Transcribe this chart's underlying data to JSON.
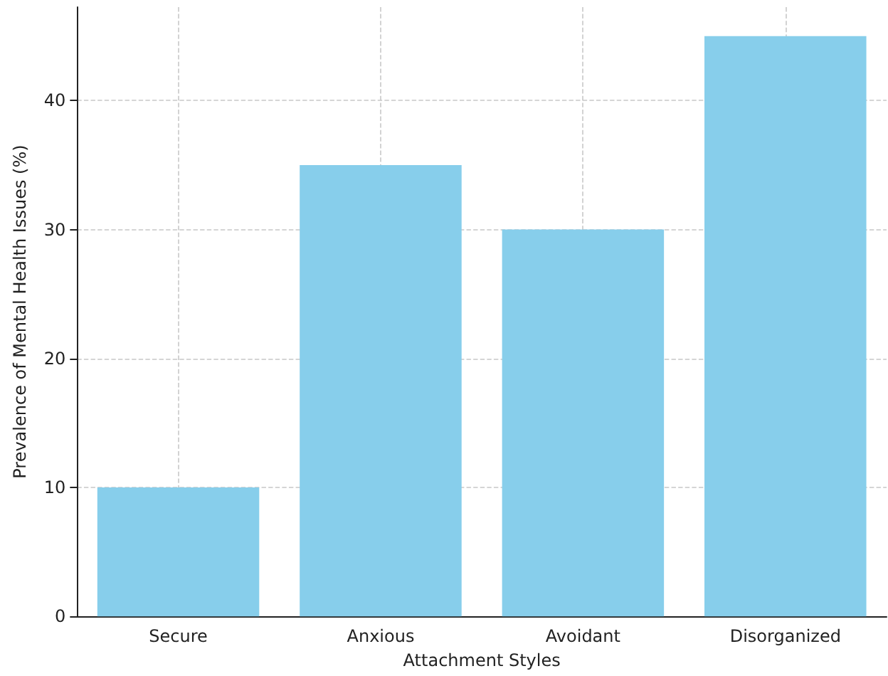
{
  "chart_data": {
    "type": "bar",
    "xlabel": "Attachment Styles",
    "ylabel": "Prevalence of Mental Health Issues (%)",
    "categories": [
      "Secure",
      "Anxious",
      "Avoidant",
      "Disorganized"
    ],
    "values": [
      10,
      35,
      30,
      45
    ],
    "color": "#87ceeb",
    "ylim": [
      0,
      47.25
    ],
    "yticks": [
      0,
      10,
      20,
      30,
      40
    ],
    "grid": true
  }
}
